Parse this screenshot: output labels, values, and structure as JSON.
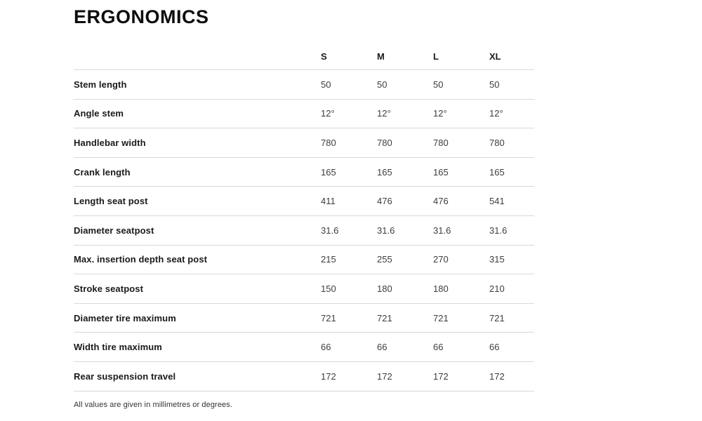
{
  "page": {
    "title": "ERGONOMICS",
    "footnote": "All values are given in millimetres or degrees."
  },
  "table": {
    "columns": [
      "S",
      "M",
      "L",
      "XL"
    ],
    "rows": [
      {
        "label": "Stem length",
        "values": [
          "50",
          "50",
          "50",
          "50"
        ]
      },
      {
        "label": "Angle stem",
        "values": [
          "12°",
          "12°",
          "12°",
          "12°"
        ]
      },
      {
        "label": "Handlebar width",
        "values": [
          "780",
          "780",
          "780",
          "780"
        ]
      },
      {
        "label": "Crank length",
        "values": [
          "165",
          "165",
          "165",
          "165"
        ]
      },
      {
        "label": "Length seat post",
        "values": [
          "411",
          "476",
          "476",
          "541"
        ]
      },
      {
        "label": "Diameter seatpost",
        "values": [
          "31.6",
          "31.6",
          "31.6",
          "31.6"
        ]
      },
      {
        "label": "Max. insertion depth seat post",
        "values": [
          "215",
          "255",
          "270",
          "315"
        ]
      },
      {
        "label": "Stroke seatpost",
        "values": [
          "150",
          "180",
          "180",
          "210"
        ]
      },
      {
        "label": "Diameter tire maximum",
        "values": [
          "721",
          "721",
          "721",
          "721"
        ]
      },
      {
        "label": "Width tire maximum",
        "values": [
          "66",
          "66",
          "66",
          "66"
        ]
      },
      {
        "label": "Rear suspension travel",
        "values": [
          "172",
          "172",
          "172",
          "172"
        ]
      }
    ]
  }
}
